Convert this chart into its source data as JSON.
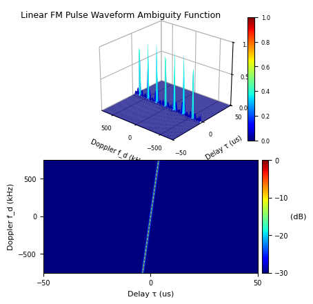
{
  "title": "Linear FM Pulse Waveform Ambiguity Function",
  "tau_max_us": 50,
  "fd_max_khz": 750,
  "N_tau": 400,
  "N_fd": 400,
  "T_us": 50,
  "B_mhz": 10,
  "colormap_3d": "jet",
  "colormap_2d": "jet",
  "xlabel_3d": "Delay τ (us)",
  "ylabel_3d": "Doppler f_d (kHz)",
  "xlabel_2d": "Delay τ (us)",
  "ylabel_2d": "Doppler f_d (kHz)",
  "clabel_2d": "(dB)",
  "clim_2d": [
    -30,
    0
  ],
  "zlim_3d": [
    0,
    1
  ],
  "zticks_3d": [
    0,
    0.5,
    1
  ],
  "xticks_3d": [
    500,
    0,
    -500
  ],
  "yticks_3d": [
    -50,
    0,
    50
  ],
  "xticks_2d": [
    -50,
    0,
    50
  ],
  "yticks_2d": [
    -500,
    0,
    500
  ],
  "cticks_2d": [
    0,
    -10,
    -20,
    -30
  ],
  "cticks_3d": [
    0,
    0.2,
    0.4,
    0.6,
    0.8,
    1.0
  ],
  "background_color": "#ffffff",
  "title_fontsize": 9,
  "axis_fontsize": 7,
  "tick_fontsize": 6,
  "axis2_fontsize": 8,
  "tick2_fontsize": 7,
  "elev": 25,
  "azim": -50
}
